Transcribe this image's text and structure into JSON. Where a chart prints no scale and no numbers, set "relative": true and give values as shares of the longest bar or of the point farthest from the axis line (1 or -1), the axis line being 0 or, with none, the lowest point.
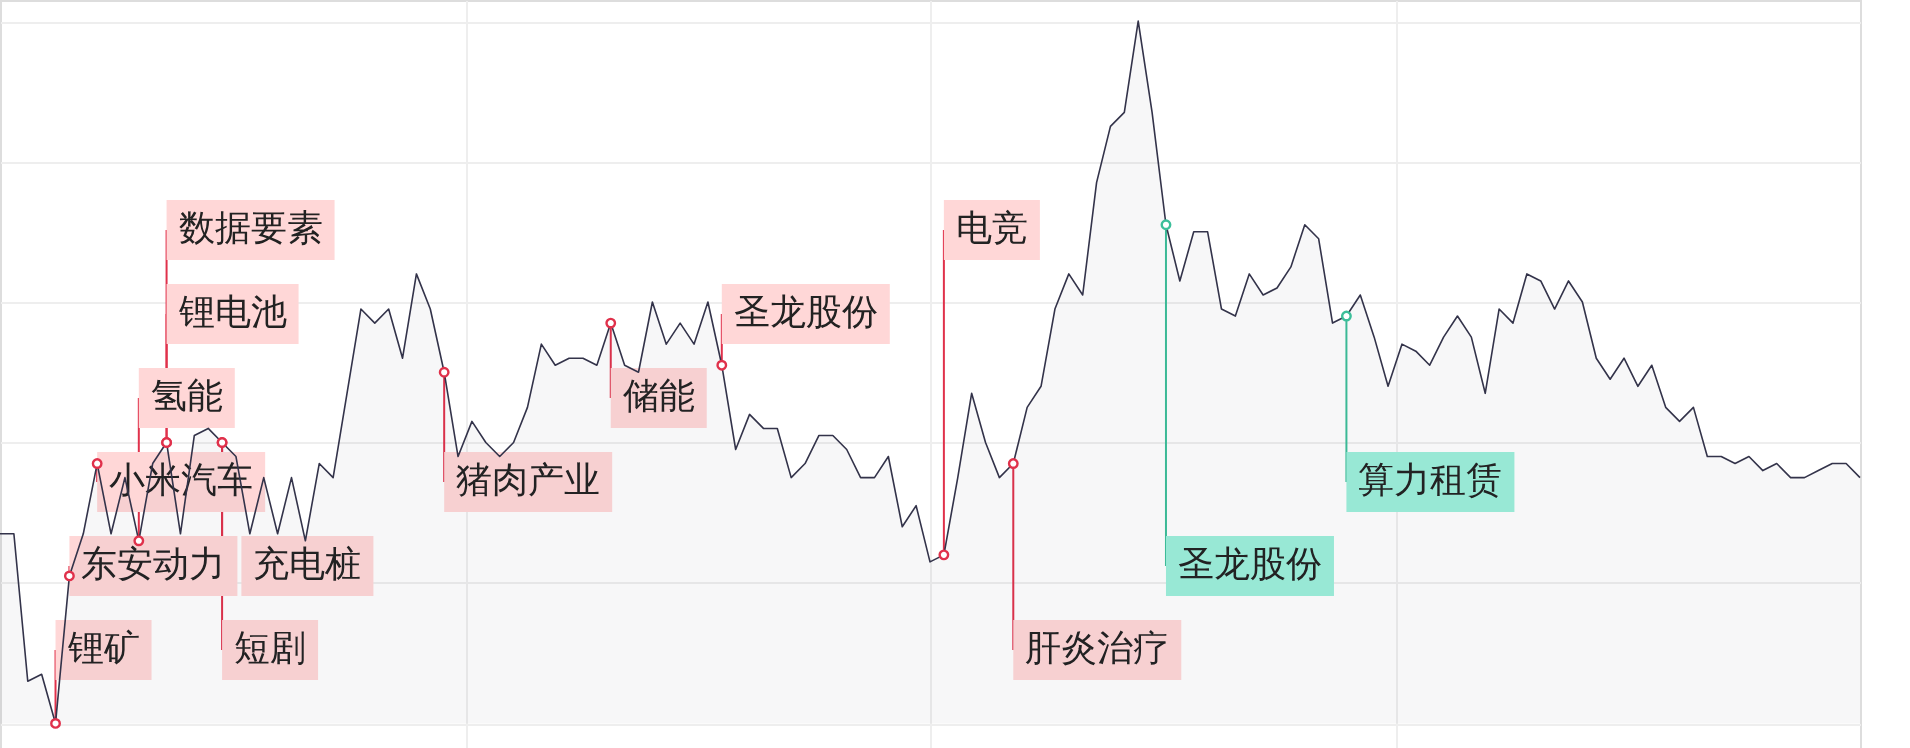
{
  "chart_data": {
    "type": "area",
    "relative": true,
    "grid": true,
    "categories": [
      null,
      null,
      null,
      null,
      null,
      null,
      null,
      null,
      null,
      null,
      null,
      null,
      null,
      null,
      null,
      null,
      null,
      null,
      null,
      null,
      null,
      null,
      null,
      null,
      null,
      null,
      null,
      null,
      null,
      null,
      null,
      null,
      null,
      null,
      null,
      null,
      null,
      null,
      null,
      null,
      null,
      null,
      null,
      null,
      null,
      null,
      null,
      null,
      null,
      null,
      null,
      null,
      null,
      null,
      null,
      null,
      null,
      null,
      null,
      null,
      null,
      null,
      null,
      null,
      null,
      null,
      null,
      null,
      null,
      null,
      null,
      null,
      null,
      null,
      null,
      null,
      null,
      null,
      null,
      null,
      null,
      null,
      null,
      null,
      null,
      null,
      null,
      null,
      null,
      null,
      null,
      null,
      null,
      null,
      null,
      null,
      null,
      null,
      null,
      null,
      null,
      null,
      null,
      null,
      null,
      null,
      null,
      null,
      null,
      null,
      null,
      null,
      null,
      null,
      null,
      null,
      null,
      null,
      null,
      null,
      null,
      null,
      null,
      null,
      null,
      null,
      null,
      null,
      null,
      null,
      null,
      null,
      null,
      null,
      null
    ],
    "series": [
      {
        "color": "#33334a",
        "values": [
          0.27,
          0.27,
          0.06,
          0.07,
          0,
          0.21,
          0.27,
          0.37,
          0.27,
          0.35,
          0.26,
          0.37,
          0.4,
          0.27,
          0.41,
          0.42,
          0.4,
          0.38,
          0.27,
          0.35,
          0.27,
          0.35,
          0.26,
          0.37,
          0.35,
          0.47,
          0.59,
          0.57,
          0.59,
          0.52,
          0.64,
          0.59,
          0.5,
          0.38,
          0.43,
          0.4,
          0.38,
          0.4,
          0.45,
          0.54,
          0.51,
          0.52,
          0.52,
          0.51,
          0.57,
          0.51,
          0.5,
          0.6,
          0.54,
          0.57,
          0.54,
          0.6,
          0.51,
          0.39,
          0.44,
          0.42,
          0.42,
          0.35,
          0.37,
          0.41,
          0.41,
          0.39,
          0.35,
          0.35,
          0.38,
          0.28,
          0.31,
          0.23,
          0.24,
          0.35,
          0.47,
          0.4,
          0.35,
          0.37,
          0.45,
          0.48,
          0.59,
          0.64,
          0.61,
          0.77,
          0.85,
          0.87,
          1,
          0.87,
          0.71,
          0.63,
          0.7,
          0.7,
          0.59,
          0.58,
          0.64,
          0.61,
          0.62,
          0.65,
          0.71,
          0.69,
          0.57,
          0.58,
          0.61,
          0.55,
          0.48,
          0.54,
          0.53,
          0.51,
          0.55,
          0.58,
          0.55,
          0.47,
          0.59,
          0.57,
          0.64,
          0.63,
          0.59,
          0.63,
          0.6,
          0.52,
          0.49,
          0.52,
          0.48,
          0.51,
          0.45,
          0.43,
          0.45,
          0.38,
          0.38,
          0.37,
          0.38,
          0.36,
          0.37,
          0.35,
          0.35,
          0.36,
          0.37,
          0.37,
          0.35
        ]
      }
    ],
    "annotations": [
      "锂矿",
      "东安动力",
      "小米汽车",
      "氢能",
      "锂电池",
      "数据要素",
      "充电桩",
      "短剧",
      "猪肉产业",
      "储能",
      "圣龙股份",
      "电竞",
      "肝炎治疗",
      "圣龙股份",
      "算力租赁"
    ]
  }
}
